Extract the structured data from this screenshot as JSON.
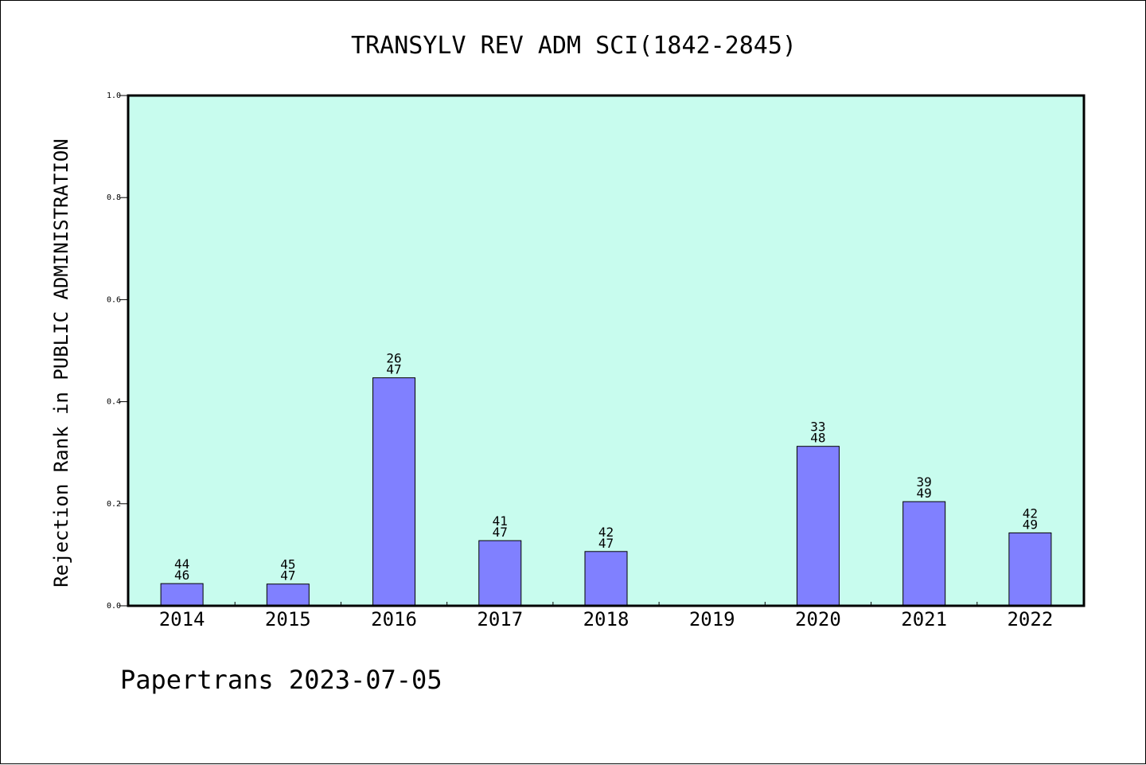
{
  "chart_data": {
    "type": "bar",
    "title": "TRANSYLV REV ADM SCI(1842-2845)",
    "ylabel": "Rejection Rank in PUBLIC ADMINISTRATION",
    "xlabel": "",
    "footer": "Papertrans 2023-07-05",
    "categories": [
      "2014",
      "2015",
      "2016",
      "2017",
      "2018",
      "2019",
      "2020",
      "2021",
      "2022"
    ],
    "values": [
      0.0435,
      0.0426,
      0.4468,
      0.1277,
      0.1064,
      null,
      0.3125,
      0.2041,
      0.1429
    ],
    "labels": [
      {
        "rank": "44",
        "total": "46"
      },
      {
        "rank": "45",
        "total": "47"
      },
      {
        "rank": "26",
        "total": "47"
      },
      {
        "rank": "41",
        "total": "47"
      },
      {
        "rank": "42",
        "total": "47"
      },
      null,
      {
        "rank": "33",
        "total": "48"
      },
      {
        "rank": "39",
        "total": "49"
      },
      {
        "rank": "42",
        "total": "49"
      }
    ],
    "ylim": [
      0,
      1.0
    ],
    "yticks": [
      "0.0",
      "0.2",
      "0.4",
      "0.6",
      "0.8",
      "1.0"
    ],
    "grid": false,
    "colors": {
      "bar": "#8080ff",
      "plot_background": "#c8fcee",
      "axis": "#000000"
    }
  }
}
